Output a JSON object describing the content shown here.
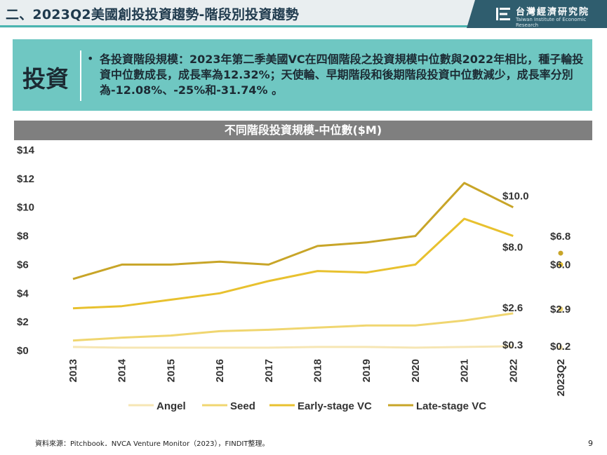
{
  "header": {
    "title": "二、2023Q2美國創投投資趨勢-階段別投資趨勢",
    "logo_name": "台灣經濟研究院",
    "logo_subtitle": "Taiwan Institute of Economic Research"
  },
  "summary": {
    "label": "投資",
    "bullet": "•",
    "text": "各投資階段規模：2023年第二季美國VC在四個階段之投資規模中位數與2022年相比，種子輪投資中位數成長，成長率為12.32%；天使輪、早期階段和後期階段投資中位數減少，成長率分別為-12.08%、-25%和-31.74% 。"
  },
  "chart_data": {
    "type": "line",
    "title": "不同階段投資規模-中位數($M)",
    "categories": [
      "2013",
      "2014",
      "2015",
      "2016",
      "2017",
      "2018",
      "2019",
      "2020",
      "2021",
      "2022"
    ],
    "q2_category": "2023Q2",
    "yticks": [
      "$0",
      "$2",
      "$4",
      "$6",
      "$8",
      "$10",
      "$12",
      "$14"
    ],
    "ylim": [
      0,
      14
    ],
    "series": [
      {
        "name": "Angel",
        "color": "#f6e6b4",
        "values": [
          0.25,
          0.2,
          0.2,
          0.2,
          0.2,
          0.25,
          0.25,
          0.2,
          0.25,
          0.3
        ],
        "end_label": "$0.3",
        "q2_value": 0.2,
        "q2_label": "$0.2"
      },
      {
        "name": "Seed",
        "color": "#f0d670",
        "values": [
          0.7,
          0.9,
          1.05,
          1.35,
          1.45,
          1.6,
          1.75,
          1.75,
          2.1,
          2.6
        ],
        "end_label": "$2.6",
        "q2_value": 2.9,
        "q2_label": "$2.9"
      },
      {
        "name": "Early-stage VC",
        "color": "#e8c12f",
        "values": [
          2.95,
          3.1,
          3.55,
          4.0,
          4.85,
          5.55,
          5.45,
          6.0,
          9.2,
          8.0
        ],
        "end_label": "$8.0",
        "q2_value": 6.0,
        "q2_label": "$6.0"
      },
      {
        "name": "Late-stage VC",
        "color": "#c8a528",
        "values": [
          5.0,
          6.0,
          6.0,
          6.2,
          6.0,
          7.3,
          7.55,
          8.0,
          11.7,
          10.0
        ],
        "end_label": "$10.0",
        "q2_value": 6.8,
        "q2_label": "$6.8"
      }
    ],
    "legend_position": "bottom"
  },
  "footer": {
    "source": "資料來源：Pitchbook．NVCA Venture Monitor（2023），FINDIT整理。",
    "page": "9"
  }
}
